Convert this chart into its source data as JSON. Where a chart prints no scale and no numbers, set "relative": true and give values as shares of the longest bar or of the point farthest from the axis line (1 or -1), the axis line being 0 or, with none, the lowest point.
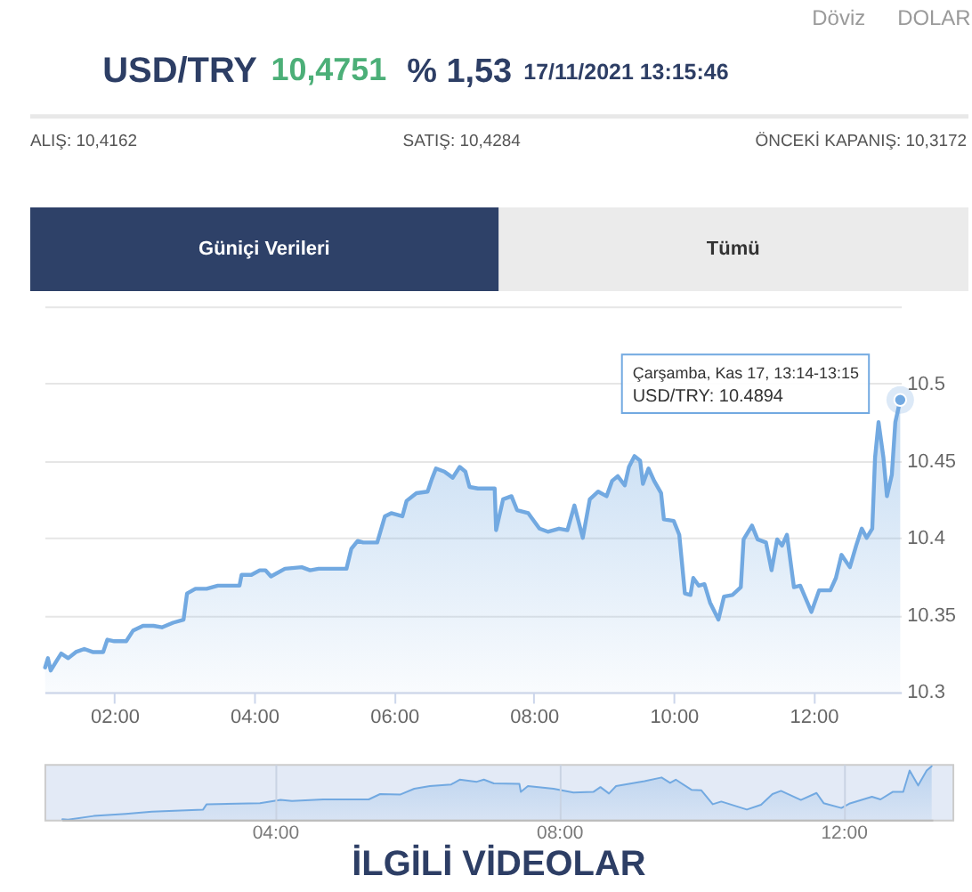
{
  "chart_data": [
    {
      "type": "area",
      "title": "USD/TRY",
      "annotations": [
        "Döviz",
        "DOLAR",
        "10,4751",
        "% 1,53",
        "17/11/2021 13:15:46",
        "ALIŞ: 10,4162",
        "SATIŞ: 10,4284",
        "ÖNCEKİ KAPANIŞ: 10,3172",
        "Güniçi Verileri",
        "Tümü",
        "İLGİLİ VİDEOLAR",
        "USD/TRY: 10.4894",
        {
          "text": "Çarşamba, Kas 17, 13:14-13:15",
          "x": 13.24,
          "y": 10.4894
        }
      ],
      "x": [
        1.01,
        1.05,
        1.09,
        1.17,
        1.24,
        1.34,
        1.45,
        1.57,
        1.69,
        1.84,
        1.9,
        2.0,
        2.17,
        2.27,
        2.41,
        2.56,
        2.68,
        2.84,
        2.99,
        3.04,
        3.16,
        3.32,
        3.48,
        3.64,
        3.79,
        3.82,
        3.96,
        4.08,
        4.16,
        4.24,
        4.44,
        4.68,
        4.8,
        4.92,
        5.16,
        5.32,
        5.39,
        5.48,
        5.56,
        5.76,
        5.87,
        5.96,
        6.12,
        6.18,
        6.32,
        6.48,
        6.54,
        6.6,
        6.72,
        6.84,
        6.94,
        7.02,
        7.08,
        7.2,
        7.44,
        7.46,
        7.56,
        7.68,
        7.76,
        7.92,
        8.08,
        8.2,
        8.36,
        8.48,
        8.58,
        8.7,
        8.8,
        8.92,
        9.04,
        9.12,
        9.2,
        9.3,
        9.36,
        9.44,
        9.52,
        9.56,
        9.64,
        9.72,
        9.82,
        9.86,
        10.0,
        10.08,
        10.16,
        10.24,
        10.28,
        10.36,
        10.44,
        10.52,
        10.64,
        10.72,
        10.84,
        10.96,
        11.0,
        11.12,
        11.2,
        11.32,
        11.4,
        11.48,
        11.55,
        11.62,
        11.72,
        11.81,
        11.97,
        12.08,
        12.24,
        12.32,
        12.4,
        12.52,
        12.61,
        12.69,
        12.76,
        12.84,
        12.88,
        12.93,
        13.0,
        13.05,
        13.12,
        13.17,
        13.24
      ],
      "series": [
        {
          "color": "#72a9e1",
          "values": [
            10.316,
            10.322,
            10.314,
            10.32,
            10.325,
            10.322,
            10.326,
            10.328,
            10.326,
            10.326,
            10.334,
            10.333,
            10.333,
            10.34,
            10.343,
            10.343,
            10.342,
            10.345,
            10.347,
            10.364,
            10.367,
            10.367,
            10.369,
            10.369,
            10.369,
            10.376,
            10.376,
            10.379,
            10.379,
            10.375,
            10.38,
            10.381,
            10.379,
            10.38,
            10.38,
            10.38,
            10.393,
            10.398,
            10.397,
            10.397,
            10.414,
            10.416,
            10.414,
            10.424,
            10.429,
            10.43,
            10.438,
            10.445,
            10.443,
            10.439,
            10.446,
            10.443,
            10.433,
            10.432,
            10.432,
            10.405,
            10.425,
            10.427,
            10.418,
            10.416,
            10.406,
            10.404,
            10.406,
            10.405,
            10.421,
            10.4,
            10.425,
            10.43,
            10.427,
            10.437,
            10.44,
            10.434,
            10.446,
            10.453,
            10.45,
            10.435,
            10.445,
            10.437,
            10.429,
            10.412,
            10.411,
            10.402,
            10.364,
            10.363,
            10.374,
            10.369,
            10.37,
            10.358,
            10.347,
            10.362,
            10.363,
            10.368,
            10.399,
            10.408,
            10.399,
            10.397,
            10.379,
            10.399,
            10.395,
            10.402,
            10.368,
            10.369,
            10.352,
            10.366,
            10.366,
            10.374,
            10.389,
            10.381,
            10.395,
            10.406,
            10.4,
            10.406,
            10.452,
            10.475,
            10.452,
            10.427,
            10.441,
            10.475,
            10.4894
          ]
        }
      ],
      "xlim": [
        1,
        13.25
      ],
      "xticks": [
        {
          "value": 2,
          "label": "02:00"
        },
        {
          "value": 4,
          "label": "04:00"
        },
        {
          "value": 6,
          "label": "06:00"
        },
        {
          "value": 8,
          "label": "08:00"
        },
        {
          "value": 10,
          "label": "10:00"
        },
        {
          "value": 12,
          "label": "12:00"
        }
      ],
      "ylim": [
        10.3,
        10.55
      ],
      "yticks": [
        10.3,
        10.35,
        10.4,
        10.45,
        10.5,
        {
          "value": 10.55,
          "label": null
        }
      ],
      "grid": "y"
    },
    {
      "type": "area",
      "relative": true,
      "x": [
        1.01,
        1.09,
        1.45,
        1.9,
        2.27,
        2.99,
        3.04,
        3.79,
        4.08,
        4.24,
        4.68,
        5.32,
        5.48,
        5.76,
        5.96,
        6.18,
        6.48,
        6.6,
        6.84,
        6.94,
        7.08,
        7.44,
        7.46,
        7.56,
        7.92,
        8.2,
        8.48,
        8.58,
        8.7,
        8.8,
        9.2,
        9.44,
        9.56,
        9.64,
        9.86,
        10.0,
        10.16,
        10.28,
        10.64,
        10.84,
        11.0,
        11.12,
        11.4,
        11.62,
        11.72,
        11.97,
        12.08,
        12.4,
        12.52,
        12.69,
        12.84,
        12.93,
        13.05,
        13.17,
        13.24
      ],
      "series": [
        {
          "color": "#72a9e1",
          "values": [
            0.01,
            0.0,
            0.07,
            0.11,
            0.15,
            0.19,
            0.29,
            0.31,
            0.37,
            0.35,
            0.38,
            0.38,
            0.48,
            0.47,
            0.58,
            0.63,
            0.66,
            0.75,
            0.71,
            0.75,
            0.68,
            0.67,
            0.52,
            0.63,
            0.58,
            0.51,
            0.52,
            0.61,
            0.49,
            0.63,
            0.72,
            0.79,
            0.69,
            0.75,
            0.56,
            0.55,
            0.29,
            0.34,
            0.19,
            0.28,
            0.48,
            0.54,
            0.37,
            0.5,
            0.31,
            0.22,
            0.3,
            0.43,
            0.38,
            0.52,
            0.52,
            0.92,
            0.64,
            0.92,
            1.0
          ]
        }
      ],
      "xlim": [
        1,
        13.25
      ],
      "xticks": [
        {
          "value": 4,
          "label": "04:00"
        },
        {
          "value": 8,
          "label": "08:00"
        },
        {
          "value": 12,
          "label": "12:00"
        }
      ],
      "grid": "x"
    }
  ]
}
